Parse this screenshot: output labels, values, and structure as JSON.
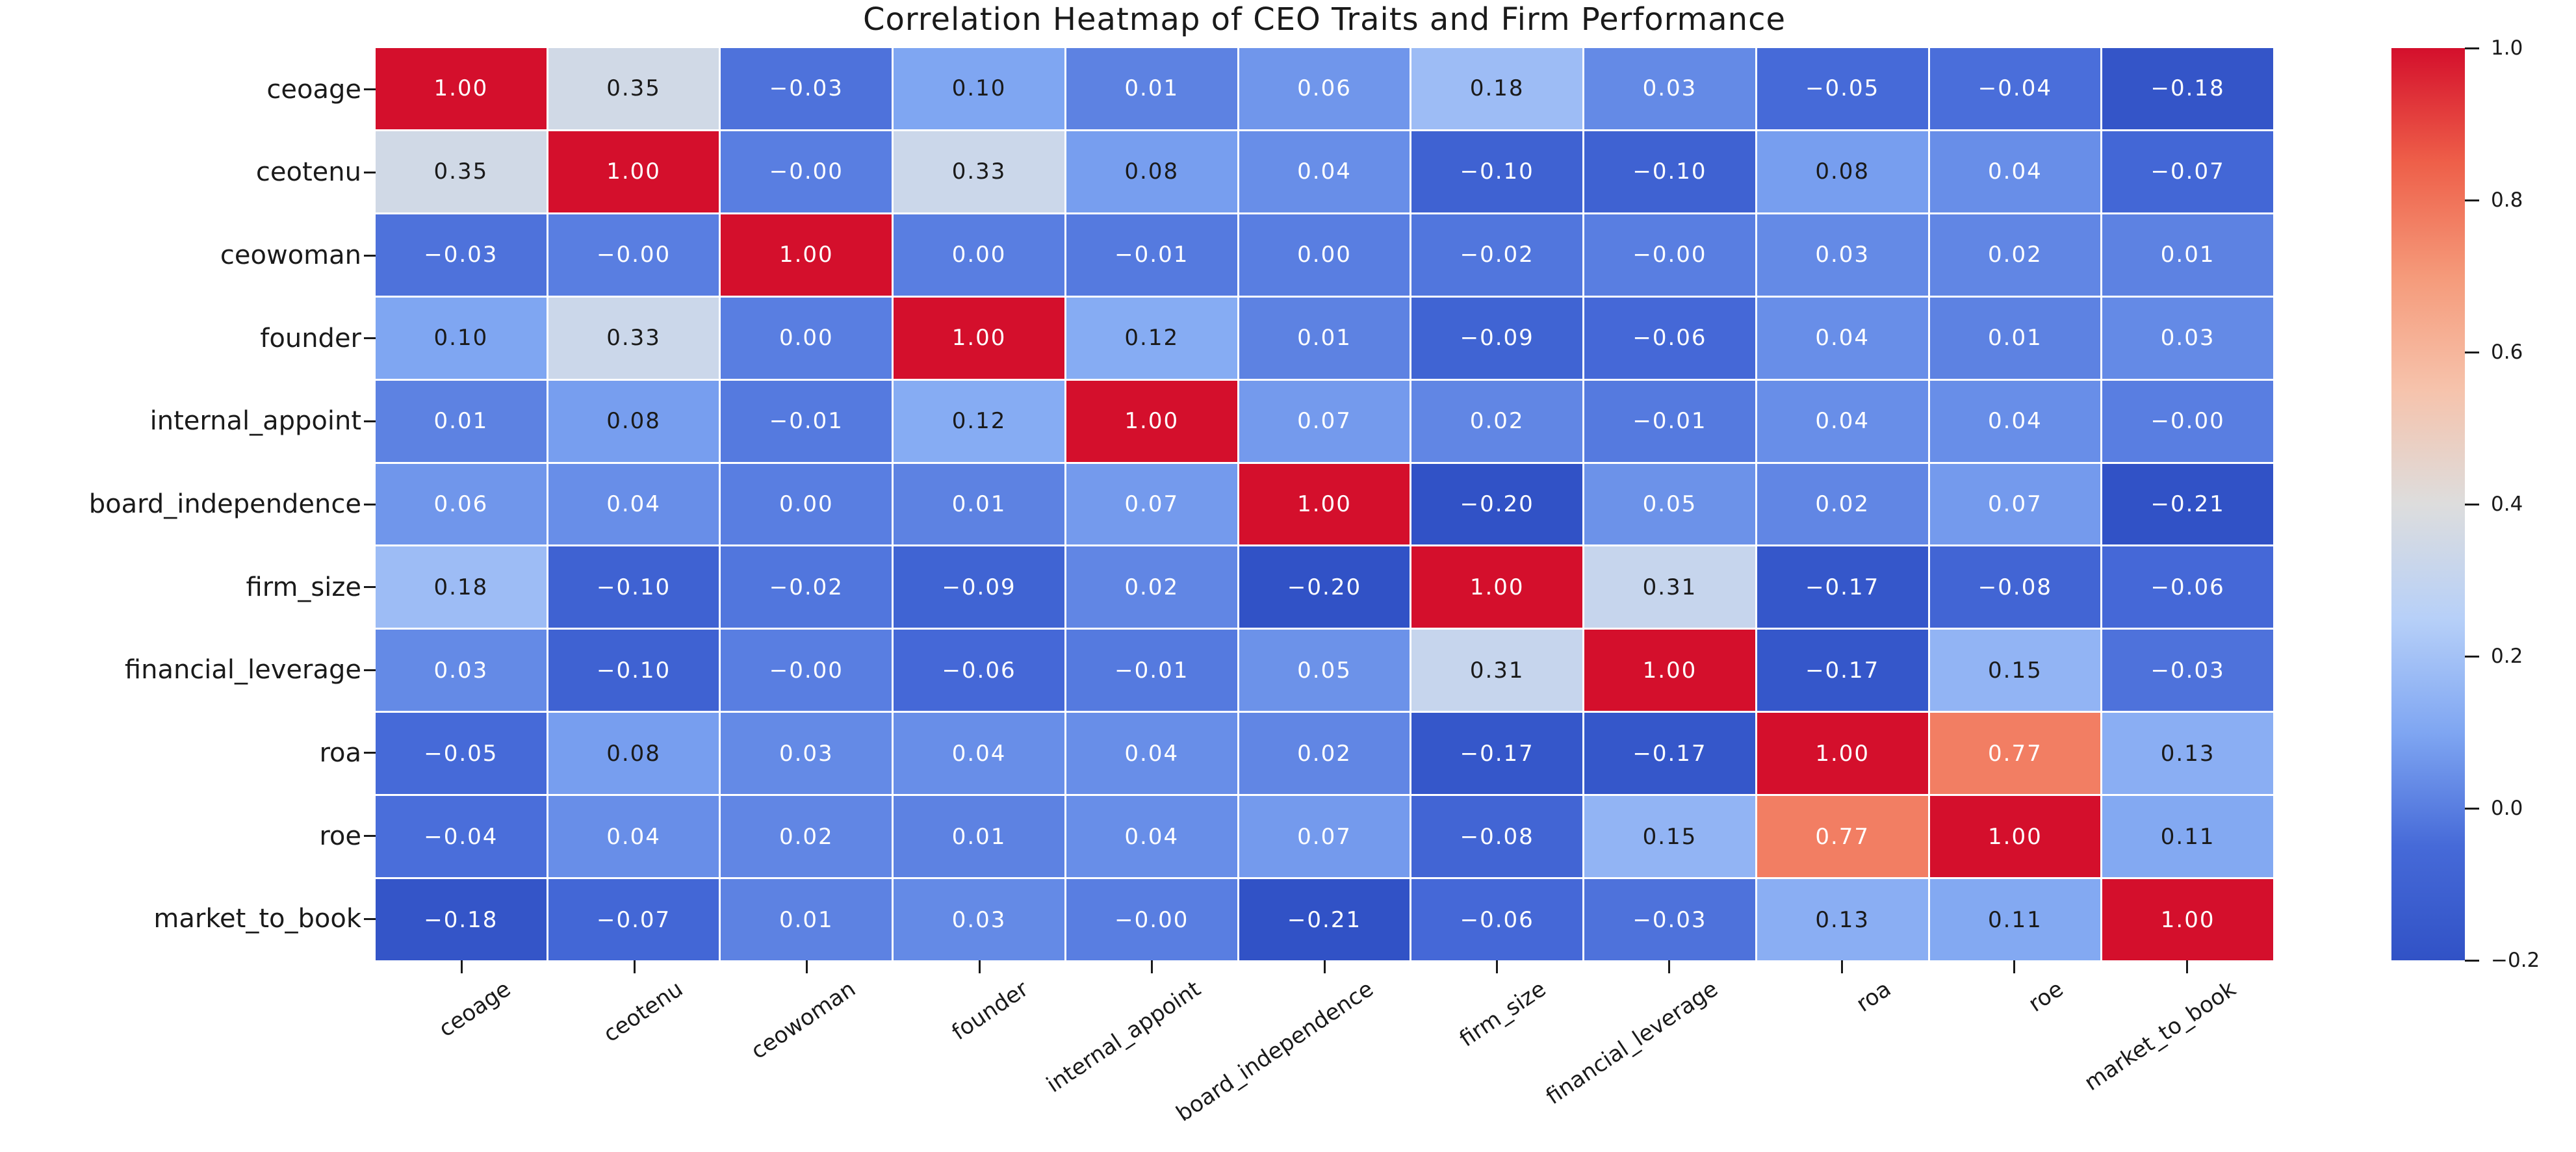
{
  "title": "Correlation Heatmap of CEO Traits and Firm Performance",
  "chart_data": {
    "type": "heatmap",
    "title": "Correlation Heatmap of CEO Traits and Firm Performance",
    "variables": [
      "ceoage",
      "ceotenu",
      "ceowoman",
      "founder",
      "internal_appoint",
      "board_independence",
      "firm_size",
      "financial_leverage",
      "roa",
      "roe",
      "market_to_book"
    ],
    "x_categories": [
      "ceoage",
      "ceotenu",
      "ceowoman",
      "founder",
      "internal_appoint",
      "board_independence",
      "firm_size",
      "financial_leverage",
      "roa",
      "roe",
      "market_to_book"
    ],
    "y_categories": [
      "ceoage",
      "ceotenu",
      "ceowoman",
      "founder",
      "internal_appoint",
      "board_independence",
      "firm_size",
      "financial_leverage",
      "roa",
      "roe",
      "market_to_book"
    ],
    "matrix_values": [
      [
        1.0,
        0.35,
        -0.03,
        0.1,
        0.01,
        0.06,
        0.18,
        0.03,
        -0.05,
        -0.04,
        -0.18
      ],
      [
        0.35,
        1.0,
        -0.0,
        0.33,
        0.08,
        0.04,
        -0.1,
        -0.1,
        0.08,
        0.04,
        -0.07
      ],
      [
        -0.03,
        -0.0,
        1.0,
        0.0,
        -0.01,
        0.0,
        -0.02,
        -0.0,
        0.03,
        0.02,
        0.01
      ],
      [
        0.1,
        0.33,
        0.0,
        1.0,
        0.12,
        0.01,
        -0.09,
        -0.06,
        0.04,
        0.01,
        0.03
      ],
      [
        0.01,
        0.08,
        -0.01,
        0.12,
        1.0,
        0.07,
        0.02,
        -0.01,
        0.04,
        0.04,
        -0.0
      ],
      [
        0.06,
        0.04,
        0.0,
        0.01,
        0.07,
        1.0,
        -0.2,
        0.05,
        0.02,
        0.07,
        -0.21
      ],
      [
        0.18,
        -0.1,
        -0.02,
        -0.09,
        0.02,
        -0.2,
        1.0,
        0.31,
        -0.17,
        -0.08,
        -0.06
      ],
      [
        0.03,
        -0.1,
        -0.0,
        -0.06,
        -0.01,
        0.05,
        0.31,
        1.0,
        -0.17,
        0.15,
        -0.03
      ],
      [
        -0.05,
        0.08,
        0.03,
        0.04,
        0.04,
        0.02,
        -0.17,
        -0.17,
        1.0,
        0.77,
        0.13
      ],
      [
        -0.04,
        0.04,
        0.02,
        0.01,
        0.04,
        0.07,
        -0.08,
        0.15,
        0.77,
        1.0,
        0.11
      ],
      [
        -0.18,
        -0.07,
        0.01,
        0.03,
        -0.0,
        -0.21,
        -0.06,
        -0.03,
        0.13,
        0.11,
        1.0
      ]
    ],
    "matrix_display": [
      [
        "1.00",
        "0.35",
        "−0.03",
        "0.10",
        "0.01",
        "0.06",
        "0.18",
        "0.03",
        "−0.05",
        "−0.04",
        "−0.18"
      ],
      [
        "0.35",
        "1.00",
        "−0.00",
        "0.33",
        "0.08",
        "0.04",
        "−0.10",
        "−0.10",
        "0.08",
        "0.04",
        "−0.07"
      ],
      [
        "−0.03",
        "−0.00",
        "1.00",
        "0.00",
        "−0.01",
        "0.00",
        "−0.02",
        "−0.00",
        "0.03",
        "0.02",
        "0.01"
      ],
      [
        "0.10",
        "0.33",
        "0.00",
        "1.00",
        "0.12",
        "0.01",
        "−0.09",
        "−0.06",
        "0.04",
        "0.01",
        "0.03"
      ],
      [
        "0.01",
        "0.08",
        "−0.01",
        "0.12",
        "1.00",
        "0.07",
        "0.02",
        "−0.01",
        "0.04",
        "0.04",
        "−0.00"
      ],
      [
        "0.06",
        "0.04",
        "0.00",
        "0.01",
        "0.07",
        "1.00",
        "−0.20",
        "0.05",
        "0.02",
        "0.07",
        "−0.21"
      ],
      [
        "0.18",
        "−0.10",
        "−0.02",
        "−0.09",
        "0.02",
        "−0.20",
        "1.00",
        "0.31",
        "−0.17",
        "−0.08",
        "−0.06"
      ],
      [
        "0.03",
        "−0.10",
        "−0.00",
        "−0.06",
        "−0.01",
        "0.05",
        "0.31",
        "1.00",
        "−0.17",
        "0.15",
        "−0.03"
      ],
      [
        "−0.05",
        "0.08",
        "0.03",
        "0.04",
        "0.04",
        "0.02",
        "−0.17",
        "−0.17",
        "1.00",
        "0.77",
        "0.13"
      ],
      [
        "−0.04",
        "0.04",
        "0.02",
        "0.01",
        "0.04",
        "0.07",
        "−0.08",
        "0.15",
        "0.77",
        "1.00",
        "0.11"
      ],
      [
        "−0.18",
        "−0.07",
        "0.01",
        "0.03",
        "−0.00",
        "−0.21",
        "−0.06",
        "−0.03",
        "0.13",
        "0.11",
        "1.00"
      ]
    ],
    "vmin": -0.2,
    "vmax": 1.0,
    "colorbar_tick_labels": [
      "1.0",
      "0.8",
      "0.6",
      "0.4",
      "0.2",
      "0.0",
      "−0.2"
    ],
    "colorbar_tick_values": [
      1.0,
      0.8,
      0.6,
      0.4,
      0.2,
      0.0,
      -0.2
    ],
    "colormap_name": "coolwarm",
    "display_palette": [
      "#3152c6",
      "#466ad8",
      "#7fa6f2",
      "#b7d0f8",
      "#dddddd",
      "#f6c3ac",
      "#f59a7a",
      "#ee5f49",
      "#d40f2c"
    ],
    "luminance_palette": [
      "#3b4cc0",
      "#6282ea",
      "#8db0fe",
      "#b8d0f9",
      "#dddddd",
      "#f5c4ad",
      "#f49a7b",
      "#de604d",
      "#b40426"
    ],
    "annotation_text_dark": "#1a1a1a",
    "annotation_text_light": "#ffffff",
    "axis_text_color": "#1a1a1a",
    "grid_line_color": "#ffffff",
    "background": "#ffffff",
    "legend_position": "right-colorbar",
    "grid": "off"
  }
}
